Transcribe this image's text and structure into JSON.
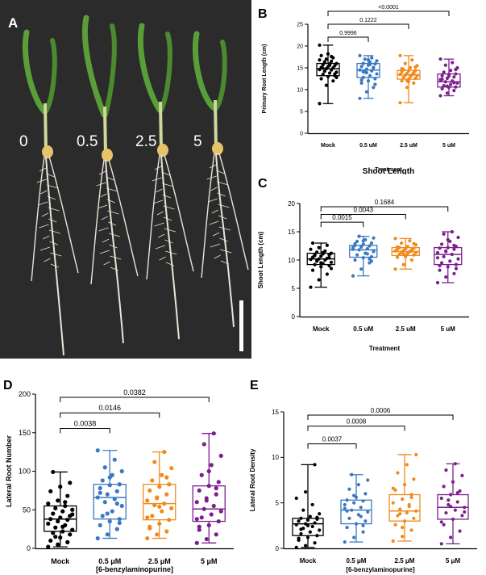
{
  "photo_panel": {
    "label": "A",
    "concentration_labels": [
      "0",
      "0.5",
      "2.5",
      "5"
    ],
    "colors": {
      "background": "#2b2b2c",
      "leaf": "#5a9e3a",
      "stem": "#cfd89a",
      "root": "#e8e4d6",
      "seed": "#e6c36a",
      "scale_bar": "#ffffff"
    }
  },
  "series_colors": {
    "Mock": "#000000",
    "0.5 uM": "#3a78c2",
    "2.5 uM": "#f08a1c",
    "5 uM": "#7a1f8c"
  },
  "chart_data": [
    {
      "id": "B",
      "label": "B",
      "type": "box",
      "title": "",
      "ylabel": "Primary Root Length (cm)",
      "xlabel": "Treatment",
      "overlay_title": "Shoot Length",
      "categories": [
        "Mock",
        "0.5 uM",
        "2.5 uM",
        "5 uM"
      ],
      "ylim": [
        0,
        25
      ],
      "yticks": [
        0,
        5,
        10,
        15,
        20,
        25
      ],
      "boxes": [
        {
          "min": 6.8,
          "q1": 13.2,
          "median": 14.8,
          "q3": 16.0,
          "max": 20.2
        },
        {
          "min": 8.0,
          "q1": 12.8,
          "median": 14.5,
          "q3": 16.0,
          "max": 17.8
        },
        {
          "min": 7.0,
          "q1": 12.4,
          "median": 13.4,
          "q3": 14.4,
          "max": 17.8
        },
        {
          "min": 8.6,
          "q1": 10.6,
          "median": 11.8,
          "q3": 13.6,
          "max": 17.0
        }
      ],
      "points": [
        [
          6.8,
          11,
          12,
          12.5,
          13,
          13.2,
          13.5,
          13.8,
          14,
          14.2,
          14.5,
          14.6,
          14.8,
          15,
          15.1,
          15.3,
          15.5,
          15.7,
          15.9,
          16,
          16.2,
          16.5,
          16.8,
          17,
          17.3,
          17.8,
          18.2,
          13.6,
          14.9,
          15.6,
          12.8,
          16.4,
          17.6,
          20.2
        ],
        [
          8,
          9.5,
          10.5,
          11.5,
          12,
          12.5,
          12.8,
          13.2,
          13.6,
          14,
          14.3,
          14.5,
          14.7,
          15,
          15.3,
          15.6,
          15.9,
          16,
          16.3,
          16.6,
          17,
          17.3,
          17.8,
          13.9,
          15.1,
          12.2,
          16.8,
          11.2,
          14.1,
          15.8
        ],
        [
          7,
          10.5,
          11.5,
          12,
          12.4,
          12.6,
          12.8,
          13,
          13.2,
          13.3,
          13.4,
          13.5,
          13.7,
          13.9,
          14.1,
          14.3,
          14.4,
          14.6,
          15,
          15.5,
          16,
          16.8,
          17.8,
          12.1,
          13.6,
          14.8,
          11.8,
          15.2
        ],
        [
          8.6,
          9.2,
          9.8,
          10.2,
          10.5,
          10.6,
          10.9,
          11.2,
          11.5,
          11.8,
          12,
          12.3,
          12.6,
          12.9,
          13.2,
          13.5,
          13.6,
          14,
          14.4,
          15,
          15.6,
          16.2,
          17,
          10.8,
          11.6,
          12.4,
          13.1,
          14.6
        ]
      ],
      "comparisons": [
        {
          "from": "Mock",
          "to": "0.5 uM",
          "p": "0.9996"
        },
        {
          "from": "Mock",
          "to": "2.5 uM",
          "p": "0.1222"
        },
        {
          "from": "Mock",
          "to": "5 uM",
          "p": "<0.0001"
        }
      ]
    },
    {
      "id": "C",
      "label": "C",
      "type": "box",
      "title": "",
      "ylabel": "Shoot Length (cm)",
      "xlabel": "Treatment",
      "categories": [
        "Mock",
        "0.5 uM",
        "2.5 uM",
        "5 uM"
      ],
      "ylim": [
        0,
        20
      ],
      "yticks": [
        0,
        5,
        10,
        15,
        20
      ],
      "boxes": [
        {
          "min": 5.2,
          "q1": 9.2,
          "median": 10.2,
          "q3": 11.2,
          "max": 13.0
        },
        {
          "min": 7.2,
          "q1": 10.5,
          "median": 11.8,
          "q3": 12.6,
          "max": 14.2
        },
        {
          "min": 8.4,
          "q1": 10.8,
          "median": 11.5,
          "q3": 12.2,
          "max": 13.8
        },
        {
          "min": 6.0,
          "q1": 9.2,
          "median": 11.0,
          "q3": 12.2,
          "max": 15.0
        }
      ],
      "points": [
        [
          5.2,
          6.5,
          7.5,
          8.2,
          8.8,
          9,
          9.2,
          9.4,
          9.6,
          9.8,
          10,
          10.1,
          10.2,
          10.3,
          10.5,
          10.7,
          10.9,
          11,
          11.1,
          11.2,
          11.4,
          11.6,
          11.9,
          12.2,
          12.6,
          13,
          9.5,
          10.4,
          10.8,
          11.3,
          8.5,
          9.9
        ],
        [
          7.2,
          8.4,
          9.5,
          10,
          10.4,
          10.6,
          10.9,
          11.2,
          11.5,
          11.8,
          12,
          12.2,
          12.4,
          12.5,
          12.6,
          12.8,
          13,
          13.3,
          13.6,
          13.9,
          14.2,
          11.1,
          11.9,
          12.3,
          10.2,
          12.9,
          13.4,
          9.8
        ],
        [
          8.4,
          9.2,
          10,
          10.5,
          10.8,
          10.9,
          11,
          11.2,
          11.3,
          11.4,
          11.5,
          11.6,
          11.7,
          11.8,
          11.9,
          12,
          12.1,
          12.2,
          12.4,
          12.7,
          13,
          13.4,
          13.8,
          11.1,
          11.6,
          12.3,
          10.6,
          12.9
        ],
        [
          6,
          7,
          7.6,
          8.2,
          8.8,
          9.2,
          9.5,
          9.8,
          10.2,
          10.6,
          11,
          11.3,
          11.6,
          11.9,
          12.1,
          12.2,
          12.4,
          12.8,
          13.3,
          14,
          14.6,
          15,
          10.4,
          11.5,
          12.6,
          9,
          13.6,
          8.5
        ]
      ],
      "comparisons": [
        {
          "from": "Mock",
          "to": "0.5 uM",
          "p": "0.0015"
        },
        {
          "from": "Mock",
          "to": "2.5 uM",
          "p": "0.0043"
        },
        {
          "from": "Mock",
          "to": "5 uM",
          "p": "0.1684"
        }
      ]
    },
    {
      "id": "D",
      "label": "D",
      "type": "box",
      "title": "",
      "ylabel": "Lateral Root Number",
      "xlabel": "[6-benzylaminopurine]",
      "categories": [
        "Mock",
        "0.5 μM",
        "2.5 μM",
        "5 μM"
      ],
      "ylim": [
        0,
        200
      ],
      "yticks": [
        0,
        50,
        100,
        150,
        200
      ],
      "boxes": [
        {
          "min": 2,
          "q1": 22,
          "median": 38,
          "q3": 55,
          "max": 99
        },
        {
          "min": 13,
          "q1": 38,
          "median": 66,
          "q3": 83,
          "max": 127
        },
        {
          "min": 13,
          "q1": 37,
          "median": 58,
          "q3": 83,
          "max": 125
        },
        {
          "min": 7,
          "q1": 35,
          "median": 51,
          "q3": 81,
          "max": 149
        }
      ],
      "points": [
        [
          2,
          5,
          8,
          10,
          14,
          18,
          20,
          22,
          24,
          27,
          30,
          32,
          35,
          37,
          38,
          40,
          42,
          45,
          48,
          50,
          52,
          55,
          58,
          62,
          68,
          74,
          80,
          85,
          99,
          28,
          44,
          15,
          60
        ],
        [
          13,
          18,
          25,
          30,
          35,
          38,
          42,
          48,
          55,
          60,
          64,
          66,
          70,
          74,
          78,
          82,
          83,
          88,
          95,
          100,
          105,
          115,
          127,
          45,
          58,
          72,
          92,
          33
        ],
        [
          13,
          18,
          22,
          28,
          32,
          37,
          42,
          48,
          52,
          56,
          58,
          62,
          66,
          70,
          75,
          80,
          83,
          88,
          95,
          104,
          112,
          125,
          40,
          65,
          92,
          26,
          54
        ],
        [
          7,
          12,
          18,
          24,
          30,
          35,
          40,
          44,
          48,
          51,
          55,
          60,
          65,
          70,
          75,
          81,
          86,
          95,
          108,
          120,
          135,
          149,
          38,
          62,
          78,
          28,
          100
        ]
      ],
      "comparisons": [
        {
          "from": "Mock",
          "to": "0.5 μM",
          "p": "0.0038"
        },
        {
          "from": "Mock",
          "to": "2.5 μM",
          "p": "0.0146"
        },
        {
          "from": "Mock",
          "to": "5 μM",
          "p": "0.0382"
        }
      ]
    },
    {
      "id": "E",
      "label": "E",
      "type": "box",
      "title": "",
      "ylabel": "Lateral Root Density",
      "xlabel": "[6-benzylaminopurine]",
      "categories": [
        "Mock",
        "0.5 μM",
        "2.5 μM",
        "5 μM"
      ],
      "ylim": [
        0,
        15
      ],
      "yticks": [
        0,
        5,
        10,
        15
      ],
      "boxes": [
        {
          "min": 0.1,
          "q1": 1.4,
          "median": 2.7,
          "q3": 3.3,
          "max": 9.2
        },
        {
          "min": 0.7,
          "q1": 2.7,
          "median": 4.2,
          "q3": 5.3,
          "max": 8.1
        },
        {
          "min": 0.8,
          "q1": 3.0,
          "median": 4.1,
          "q3": 5.9,
          "max": 10.3
        },
        {
          "min": 0.5,
          "q1": 3.2,
          "median": 4.5,
          "q3": 5.9,
          "max": 9.3
        }
      ],
      "points": [
        [
          0.1,
          0.3,
          0.6,
          0.9,
          1.2,
          1.4,
          1.6,
          1.8,
          2,
          2.2,
          2.4,
          2.6,
          2.7,
          2.8,
          3,
          3.1,
          3.2,
          3.3,
          3.5,
          3.8,
          4.2,
          4.8,
          5.5,
          6.2,
          9.2,
          1.1,
          2.5,
          3.4,
          2.1
        ],
        [
          0.7,
          1.2,
          1.8,
          2.3,
          2.7,
          3,
          3.3,
          3.7,
          4,
          4.2,
          4.5,
          4.8,
          5,
          5.2,
          5.3,
          5.6,
          6,
          6.5,
          7,
          7.5,
          8.1,
          3.5,
          4.4,
          5.8,
          2.5,
          4.1
        ],
        [
          0.8,
          1.3,
          2,
          2.6,
          3,
          3.3,
          3.6,
          3.9,
          4.1,
          4.3,
          4.6,
          5,
          5.4,
          5.9,
          6.4,
          7,
          7.6,
          8.3,
          9.2,
          10.3,
          3.8,
          4.8,
          6.6,
          2.3,
          5.6
        ],
        [
          0.5,
          1.2,
          1.9,
          2.6,
          3.2,
          3.6,
          3.9,
          4.2,
          4.5,
          4.8,
          5.1,
          5.5,
          5.9,
          6.3,
          6.8,
          7.3,
          8,
          8.6,
          9.3,
          4,
          5.3,
          6.1,
          2.9,
          4.6
        ]
      ],
      "comparisons": [
        {
          "from": "Mock",
          "to": "0.5 μM",
          "p": "0.0037"
        },
        {
          "from": "Mock",
          "to": "2.5 μM",
          "p": "0.0008"
        },
        {
          "from": "Mock",
          "to": "5 μM",
          "p": "0.0006"
        }
      ]
    }
  ]
}
